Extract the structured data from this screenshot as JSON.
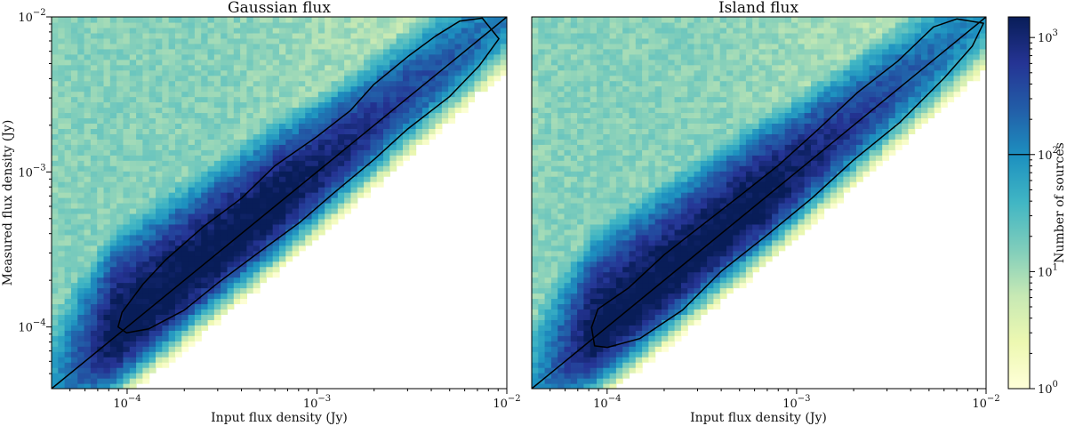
{
  "chart_data": [
    {
      "type": "heatmap",
      "title": "Gaussian flux",
      "xlabel": "Input flux density (Jy)",
      "ylabel": "Measured flux density (Jy)",
      "xscale": "log",
      "yscale": "log",
      "xlim": [
        4e-05,
        0.01
      ],
      "ylim": [
        4e-05,
        0.01
      ],
      "x_ticks": [
        {
          "value": 0.0001,
          "base": "10",
          "exp": "−4"
        },
        {
          "value": 0.001,
          "base": "10",
          "exp": "−3"
        },
        {
          "value": 0.01,
          "base": "10",
          "exp": "−2"
        }
      ],
      "y_ticks": [
        {
          "value": 0.0001,
          "base": "10",
          "exp": "−4"
        },
        {
          "value": 0.001,
          "base": "10",
          "exp": "−3"
        },
        {
          "value": 0.01,
          "base": "10",
          "exp": "−2"
        }
      ],
      "reference_line": {
        "label": "y = x",
        "from": [
          4e-05,
          4e-05
        ],
        "to": [
          0.01,
          0.01
        ]
      },
      "contour_level": 100,
      "contour_upper": [
        [
          9e-05,
          0.0001
        ],
        [
          9.5e-05,
          0.000125
        ],
        [
          0.00012,
          0.00019
        ],
        [
          0.00016,
          0.00027
        ],
        [
          0.00025,
          0.00044
        ],
        [
          0.0004,
          0.00068
        ],
        [
          0.0006,
          0.0011
        ],
        [
          0.001,
          0.0017
        ],
        [
          0.0015,
          0.0025
        ],
        [
          0.002,
          0.0037
        ],
        [
          0.003,
          0.0055
        ],
        [
          0.0042,
          0.0076
        ],
        [
          0.0056,
          0.0093
        ],
        [
          0.0075,
          0.0098
        ]
      ],
      "contour_lower": [
        [
          0.0001,
          9.2e-05
        ],
        [
          0.00013,
          9.6e-05
        ],
        [
          0.0002,
          0.00013
        ],
        [
          0.0003,
          0.00019
        ],
        [
          0.0005,
          0.0003
        ],
        [
          0.0008,
          0.00047
        ],
        [
          0.0012,
          0.00073
        ],
        [
          0.002,
          0.0012
        ],
        [
          0.003,
          0.0019
        ],
        [
          0.005,
          0.0031
        ],
        [
          0.0072,
          0.0048
        ],
        [
          0.0091,
          0.0072
        ]
      ],
      "density_model": {
        "peak_log10": 3.3,
        "input_floor": 8.5e-05
      }
    },
    {
      "type": "heatmap",
      "title": "Island flux",
      "xlabel": "Input flux density (Jy)",
      "ylabel": "",
      "xscale": "log",
      "yscale": "log",
      "xlim": [
        4e-05,
        0.01
      ],
      "ylim": [
        4e-05,
        0.01
      ],
      "x_ticks": [
        {
          "value": 0.0001,
          "base": "10",
          "exp": "−4"
        },
        {
          "value": 0.001,
          "base": "10",
          "exp": "−3"
        },
        {
          "value": 0.01,
          "base": "10",
          "exp": "−2"
        }
      ],
      "y_ticks": [],
      "reference_line": {
        "label": "y = x",
        "from": [
          4e-05,
          4e-05
        ],
        "to": [
          0.01,
          0.01
        ]
      },
      "contour_level": 100,
      "contour_upper": [
        [
          8.5e-05,
          7.5e-05
        ],
        [
          8.2e-05,
          0.0001
        ],
        [
          9e-05,
          0.00013
        ],
        [
          0.00013,
          0.00018
        ],
        [
          0.0002,
          0.00029
        ],
        [
          0.0003,
          0.00043
        ],
        [
          0.0005,
          0.0007
        ],
        [
          0.0008,
          0.0011
        ],
        [
          0.0013,
          0.0019
        ],
        [
          0.0021,
          0.0032
        ],
        [
          0.0034,
          0.0052
        ],
        [
          0.0053,
          0.0086
        ],
        [
          0.007,
          0.0098
        ]
      ],
      "contour_lower": [
        [
          0.0001,
          7.3e-05
        ],
        [
          0.00015,
          8.5e-05
        ],
        [
          0.00025,
          0.00013
        ],
        [
          0.0004,
          0.00023
        ],
        [
          0.0007,
          0.00039
        ],
        [
          0.0012,
          0.00068
        ],
        [
          0.002,
          0.0012
        ],
        [
          0.0035,
          0.0021
        ],
        [
          0.006,
          0.004
        ],
        [
          0.0085,
          0.0065
        ],
        [
          0.0098,
          0.009
        ]
      ],
      "density_model": {
        "peak_log10": 3.3,
        "input_floor": 8.5e-05
      }
    }
  ],
  "colorbar": {
    "label": "Number of sources",
    "scale": "log",
    "range": [
      1,
      1500
    ],
    "ticks": [
      {
        "value": 1,
        "base": "10",
        "exp": "0"
      },
      {
        "value": 10,
        "base": "10",
        "exp": "1"
      },
      {
        "value": 100,
        "base": "10",
        "exp": "2"
      },
      {
        "value": 1000,
        "base": "10",
        "exp": "3"
      }
    ],
    "contour_marker": 100,
    "colormap": "YlGnBu",
    "stops": [
      "#ffffd9",
      "#edf8b1",
      "#c7e9b4",
      "#7fcdbb",
      "#41b6c4",
      "#1d91c0",
      "#225ea8",
      "#253494",
      "#081d58"
    ]
  }
}
